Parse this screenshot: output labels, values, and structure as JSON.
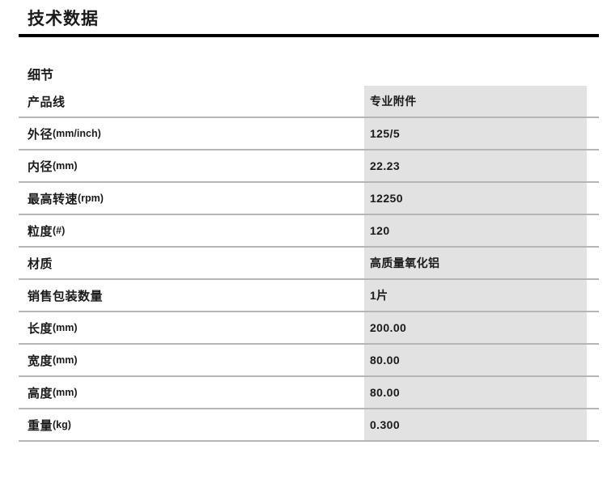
{
  "page": {
    "title": "技术数据",
    "section_heading": "细节"
  },
  "table": {
    "rows": [
      {
        "label": "产品线",
        "unit": "",
        "value": "专业附件"
      },
      {
        "label": "外径",
        "unit": "(mm/inch)",
        "value": "125/5"
      },
      {
        "label": "内径",
        "unit": "(mm)",
        "value": "22.23"
      },
      {
        "label": "最高转速",
        "unit": "(rpm)",
        "value": "12250"
      },
      {
        "label": "粒度",
        "unit": "(#)",
        "value": "120"
      },
      {
        "label": "材质",
        "unit": "",
        "value": "高质量氧化铝"
      },
      {
        "label": "销售包装数量",
        "unit": "",
        "value": "1片"
      },
      {
        "label": "长度",
        "unit": "(mm)",
        "value": "200.00"
      },
      {
        "label": "宽度",
        "unit": "(mm)",
        "value": "80.00"
      },
      {
        "label": "高度",
        "unit": "(mm)",
        "value": "80.00"
      },
      {
        "label": "重量",
        "unit": "(kg)",
        "value": "0.300"
      }
    ]
  },
  "colors": {
    "text": "#1a1a1a",
    "title_rule": "#000000",
    "divider": "#b5b5b5",
    "value_col_bg": "#e2e2e2"
  }
}
